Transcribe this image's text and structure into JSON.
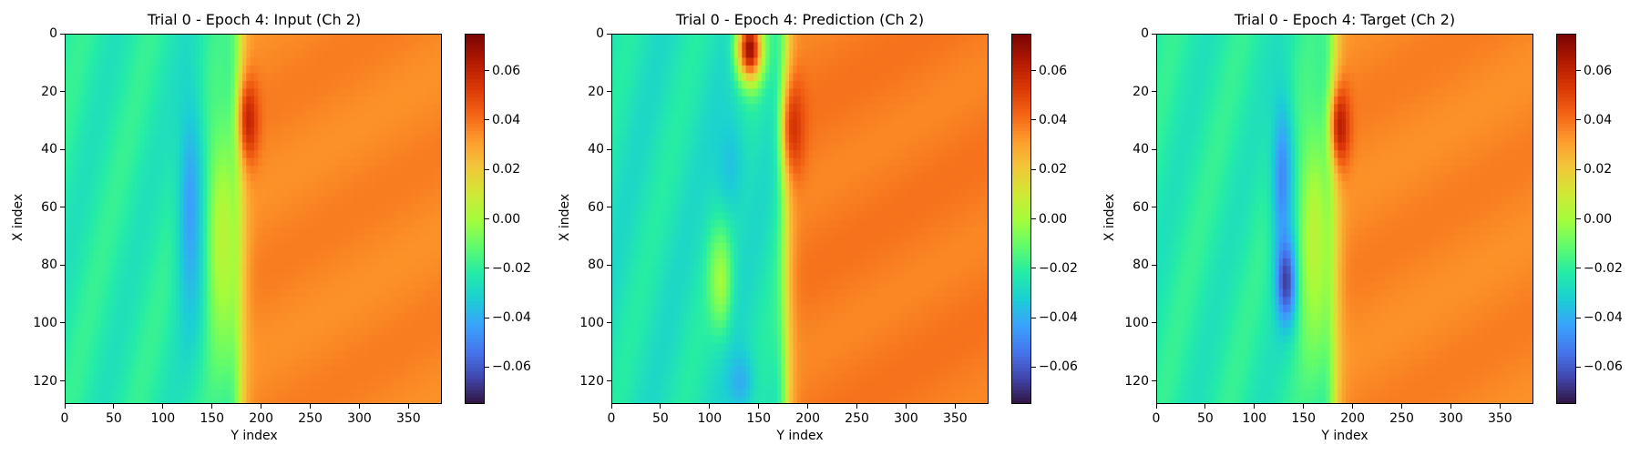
{
  "colormap": "turbo",
  "colorbar_gradient": [
    "#30123b",
    "#4145ab",
    "#4675ed",
    "#39a2fc",
    "#1bcfd4",
    "#24eca6",
    "#61fc6c",
    "#a4fc3b",
    "#d1e834",
    "#f3c63a",
    "#fe9b2d",
    "#f36315",
    "#d93806",
    "#b11901",
    "#7a0403"
  ],
  "chart_data": [
    {
      "type": "heatmap",
      "title": "Trial 0 - Epoch 4: Input (Ch 2)",
      "xlabel": "Y index",
      "ylabel": "X index",
      "xlim": [
        0,
        384
      ],
      "ylim": [
        128,
        0
      ],
      "xticks": [
        "0",
        "50",
        "100",
        "150",
        "200",
        "250",
        "300",
        "350"
      ],
      "yticks": [
        "0",
        "20",
        "40",
        "60",
        "80",
        "100",
        "120"
      ],
      "clim": [
        -0.075,
        0.075
      ],
      "colorbar_ticks": [
        "0.06",
        "0.04",
        "0.02",
        "0.00",
        "−0.02",
        "−0.04",
        "−0.06"
      ],
      "field": {
        "background_left": -0.022,
        "background_right": 0.036,
        "front_x": 177,
        "features": [
          {
            "x": 128,
            "y": 60,
            "sx": 10,
            "sy": 28,
            "value": -0.045
          },
          {
            "x": 186,
            "y": 30,
            "sx": 7,
            "sy": 10,
            "value": 0.062
          },
          {
            "x": 160,
            "y": 70,
            "sx": 12,
            "sy": 30,
            "value": 0.005
          }
        ]
      }
    },
    {
      "type": "heatmap",
      "title": "Trial 0 - Epoch 4: Prediction (Ch 2)",
      "xlabel": "Y index",
      "ylabel": "X index",
      "xlim": [
        0,
        384
      ],
      "ylim": [
        128,
        0
      ],
      "xticks": [
        "0",
        "50",
        "100",
        "150",
        "200",
        "250",
        "300",
        "350"
      ],
      "yticks": [
        "0",
        "20",
        "40",
        "60",
        "80",
        "100",
        "120"
      ],
      "clim": [
        -0.075,
        0.075
      ],
      "colorbar_ticks": [
        "0.06",
        "0.04",
        "0.02",
        "0.00",
        "−0.02",
        "−0.04",
        "−0.06"
      ],
      "field": {
        "background_left": -0.025,
        "background_right": 0.038,
        "front_x": 177,
        "features": [
          {
            "x": 140,
            "y": 5,
            "sx": 9,
            "sy": 8,
            "value": 0.07
          },
          {
            "x": 185,
            "y": 32,
            "sx": 8,
            "sy": 12,
            "value": 0.055
          },
          {
            "x": 120,
            "y": 45,
            "sx": 12,
            "sy": 14,
            "value": -0.035
          },
          {
            "x": 130,
            "y": 120,
            "sx": 10,
            "sy": 8,
            "value": -0.04
          },
          {
            "x": 110,
            "y": 85,
            "sx": 8,
            "sy": 12,
            "value": 0.0
          }
        ]
      }
    },
    {
      "type": "heatmap",
      "title": "Trial 0 - Epoch 4: Target (Ch 2)",
      "xlabel": "Y index",
      "ylabel": "X index",
      "xlim": [
        0,
        384
      ],
      "ylim": [
        128,
        0
      ],
      "xticks": [
        "0",
        "50",
        "100",
        "150",
        "200",
        "250",
        "300",
        "350"
      ],
      "yticks": [
        "0",
        "20",
        "40",
        "60",
        "80",
        "100",
        "120"
      ],
      "clim": [
        -0.075,
        0.075
      ],
      "colorbar_ticks": [
        "0.06",
        "0.04",
        "0.02",
        "0.00",
        "−0.02",
        "−0.04",
        "−0.06"
      ],
      "field": {
        "background_left": -0.022,
        "background_right": 0.036,
        "front_x": 180,
        "features": [
          {
            "x": 128,
            "y": 50,
            "sx": 8,
            "sy": 20,
            "value": -0.05
          },
          {
            "x": 132,
            "y": 85,
            "sx": 7,
            "sy": 10,
            "value": -0.07
          },
          {
            "x": 186,
            "y": 32,
            "sx": 7,
            "sy": 10,
            "value": 0.065
          },
          {
            "x": 160,
            "y": 70,
            "sx": 12,
            "sy": 30,
            "value": 0.005
          }
        ]
      }
    }
  ]
}
